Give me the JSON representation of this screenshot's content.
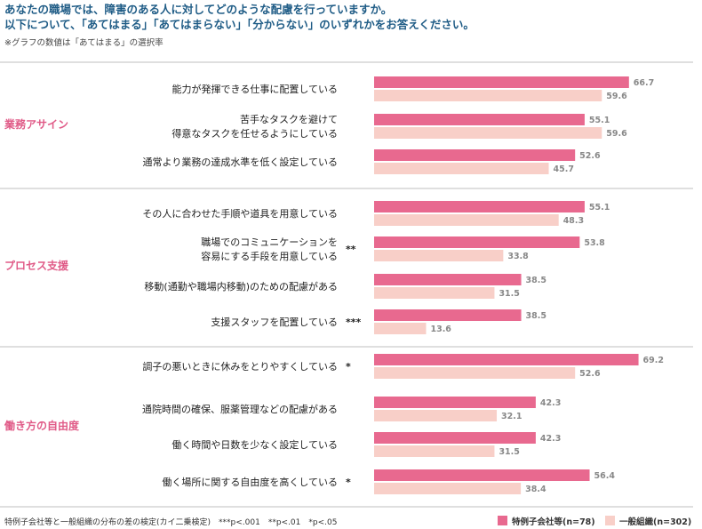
{
  "header": {
    "title_line1": "あなたの職場では、障害のある人に対してどのような配慮を行っていますか。",
    "title_line2": "以下について、「あてはまる」「あてはまらない」「分からない」のいずれかをお答えください。",
    "note": "※グラフの数値は「あてはまる」の選択率"
  },
  "footer": {
    "test_note": "特例子会社等と一般組織の分布の差の検定(カイ二乗検定)　***p<.001　**p<.01　*p<.05"
  },
  "colors": {
    "series1": "#e8698f",
    "series2": "#f8cfc8",
    "title": "#1f5c86",
    "category": "#e05a87",
    "divider": "#bfbfbf"
  },
  "chart_data": {
    "type": "bar",
    "orientation": "horizontal",
    "xlim": [
      0,
      100
    ],
    "series": [
      {
        "name": "特例子会社等(n=78)",
        "values": [
          66.7,
          55.1,
          52.6,
          55.1,
          53.8,
          38.5,
          38.5,
          69.2,
          42.3,
          42.3,
          56.4
        ]
      },
      {
        "name": "一般組織(n=302)",
        "values": [
          59.6,
          59.6,
          45.7,
          48.3,
          33.8,
          31.5,
          13.6,
          52.6,
          32.1,
          31.5,
          38.4
        ]
      }
    ],
    "groups": [
      {
        "name": "業務アサイン",
        "items": [
          {
            "label": [
              "能力が発揮できる仕事に配置している"
            ],
            "sig": ""
          },
          {
            "label": [
              "苦手なタスクを避けて",
              "得意なタスクを任せるようにしている"
            ],
            "sig": ""
          },
          {
            "label": [
              "通常より業務の達成水準を低く設定している"
            ],
            "sig": ""
          }
        ]
      },
      {
        "name": "プロセス支援",
        "items": [
          {
            "label": [
              "その人に合わせた手順や道具を用意している"
            ],
            "sig": ""
          },
          {
            "label": [
              "職場でのコミュニケーションを",
              "容易にする手段を用意している"
            ],
            "sig": "**"
          },
          {
            "label": [
              "移動(通勤や職場内移動)のための配慮がある"
            ],
            "sig": ""
          },
          {
            "label": [
              "支援スタッフを配置している"
            ],
            "sig": "***"
          }
        ]
      },
      {
        "name": "働き方の自由度",
        "items": [
          {
            "label": [
              "調子の悪いときに休みをとりやすくしている"
            ],
            "sig": "*"
          },
          {
            "label": [
              "通院時間の確保、服薬管理などの配慮がある"
            ],
            "sig": ""
          },
          {
            "label": [
              "働く時間や日数を少なく設定している"
            ],
            "sig": ""
          },
          {
            "label": [
              "働く場所に関する自由度を高くしている"
            ],
            "sig": "*"
          }
        ]
      }
    ]
  }
}
